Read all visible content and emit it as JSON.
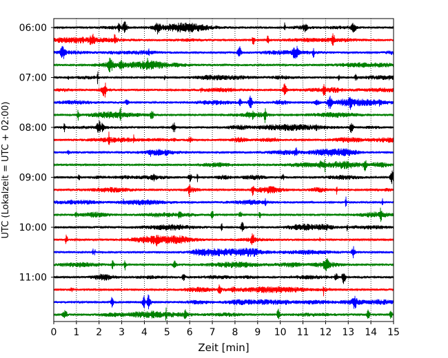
{
  "chart_data": {
    "type": "line",
    "title": "",
    "xlabel": "Zeit  [min]",
    "ylabel": "UTC (Lokalzeit = UTC + 02:00)",
    "xlim": [
      0,
      15
    ],
    "x_ticks": [
      0,
      1,
      2,
      3,
      4,
      5,
      6,
      7,
      8,
      9,
      10,
      11,
      12,
      13,
      14,
      15
    ],
    "y_ticks": [
      "06:00",
      "07:00",
      "08:00",
      "09:00",
      "10:00",
      "11:00"
    ],
    "trace_start": "06:00",
    "trace_interval_min": 15,
    "trace_count": 24,
    "grid": {
      "x": true,
      "style": "dotted"
    },
    "colors": [
      "#000000",
      "#ff0000",
      "#0000ff",
      "#008000"
    ],
    "traces": [
      {
        "start": "06:00",
        "color": "#000000"
      },
      {
        "start": "06:15",
        "color": "#ff0000"
      },
      {
        "start": "06:30",
        "color": "#0000ff"
      },
      {
        "start": "06:45",
        "color": "#008000"
      },
      {
        "start": "07:00",
        "color": "#000000"
      },
      {
        "start": "07:15",
        "color": "#ff0000"
      },
      {
        "start": "07:30",
        "color": "#0000ff"
      },
      {
        "start": "07:45",
        "color": "#008000"
      },
      {
        "start": "08:00",
        "color": "#000000"
      },
      {
        "start": "08:15",
        "color": "#ff0000"
      },
      {
        "start": "08:30",
        "color": "#0000ff"
      },
      {
        "start": "08:45",
        "color": "#008000"
      },
      {
        "start": "09:00",
        "color": "#000000"
      },
      {
        "start": "09:15",
        "color": "#ff0000"
      },
      {
        "start": "09:30",
        "color": "#0000ff"
      },
      {
        "start": "09:45",
        "color": "#008000"
      },
      {
        "start": "10:00",
        "color": "#000000"
      },
      {
        "start": "10:15",
        "color": "#ff0000"
      },
      {
        "start": "10:30",
        "color": "#0000ff"
      },
      {
        "start": "10:45",
        "color": "#008000"
      },
      {
        "start": "11:00",
        "color": "#000000"
      },
      {
        "start": "11:15",
        "color": "#ff0000"
      },
      {
        "start": "11:30",
        "color": "#0000ff"
      },
      {
        "start": "11:45",
        "color": "#008000"
      }
    ]
  }
}
